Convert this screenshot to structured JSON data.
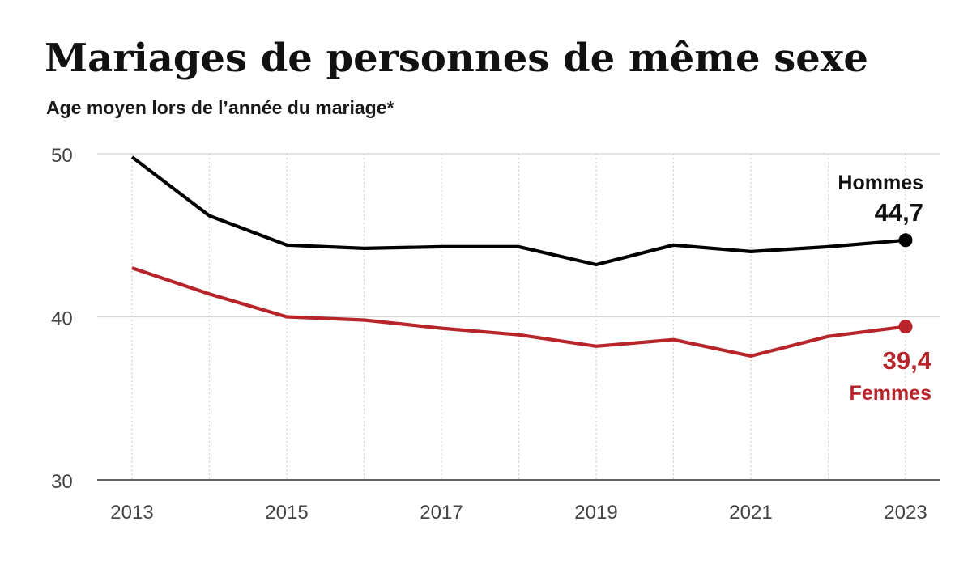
{
  "chart_data": {
    "type": "line",
    "title": "Mariages de personnes de même sexe",
    "subtitle": "Age moyen lors de l’année du mariage*",
    "xlabel": "",
    "ylabel": "",
    "x": [
      2013,
      2014,
      2015,
      2016,
      2017,
      2018,
      2019,
      2020,
      2021,
      2022,
      2023
    ],
    "x_tick_labels": [
      "2013",
      "2015",
      "2017",
      "2019",
      "2021",
      "2023"
    ],
    "y_tick_labels": [
      "50",
      "40",
      "30"
    ],
    "ylim": [
      30,
      50
    ],
    "grid": true,
    "series": [
      {
        "name": "Hommes",
        "values": [
          49.8,
          46.2,
          44.4,
          44.2,
          44.3,
          44.3,
          43.2,
          44.4,
          44.0,
          44.3,
          44.7
        ],
        "color": "#000000",
        "end_label_name": "Hommes",
        "end_label_value": "44,7"
      },
      {
        "name": "Femmes",
        "values": [
          43.0,
          41.4,
          40.0,
          39.8,
          39.3,
          38.9,
          38.2,
          38.6,
          37.6,
          38.8,
          39.4
        ],
        "color": "#b7252a",
        "end_label_name": "Femmes",
        "end_label_value": "39,4"
      }
    ]
  }
}
